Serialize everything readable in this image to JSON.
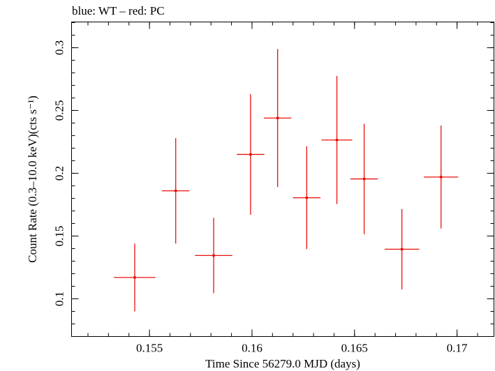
{
  "chart_data": {
    "type": "scatter",
    "title": "blue: WT – red: PC",
    "xlabel": "Time Since 56279.0 MJD (days)",
    "ylabel": "Count Rate (0.3–10.0 keV)(cts s⁻¹)",
    "xlim": [
      0.1512,
      0.1718
    ],
    "ylim": [
      0.07,
      0.3205
    ],
    "x_major_ticks": [
      0.155,
      0.16,
      0.165,
      0.17
    ],
    "x_tick_labels": [
      "0.155",
      "0.16",
      "0.165",
      "0.17"
    ],
    "x_minor_step": 0.001,
    "y_major_ticks": [
      0.1,
      0.15,
      0.2,
      0.25,
      0.3
    ],
    "y_tick_labels": [
      "0.1",
      "0.15",
      "0.2",
      "0.25",
      "0.3"
    ],
    "y_minor_step": 0.01,
    "grid": false,
    "series": [
      {
        "color": "#e8120c",
        "points": [
          {
            "x": 0.15428,
            "y": 0.117,
            "xerr_lo": 0.00101,
            "xerr_hi": 0.00101,
            "yerr_lo": 0.027,
            "yerr_hi": 0.027
          },
          {
            "x": 0.15628,
            "y": 0.186,
            "xerr_lo": 0.00067,
            "xerr_hi": 0.00067,
            "yerr_lo": 0.042,
            "yerr_hi": 0.042
          },
          {
            "x": 0.15813,
            "y": 0.1345,
            "xerr_lo": 0.00091,
            "xerr_hi": 0.00091,
            "yerr_lo": 0.03,
            "yerr_hi": 0.03
          },
          {
            "x": 0.15993,
            "y": 0.215,
            "xerr_lo": 0.00067,
            "xerr_hi": 0.00067,
            "yerr_lo": 0.048,
            "yerr_hi": 0.048
          },
          {
            "x": 0.16125,
            "y": 0.244,
            "xerr_lo": 0.00067,
            "xerr_hi": 0.00067,
            "yerr_lo": 0.055,
            "yerr_hi": 0.055
          },
          {
            "x": 0.16267,
            "y": 0.1805,
            "xerr_lo": 0.00067,
            "xerr_hi": 0.00067,
            "yerr_lo": 0.041,
            "yerr_hi": 0.041
          },
          {
            "x": 0.16414,
            "y": 0.2265,
            "xerr_lo": 0.00075,
            "xerr_hi": 0.00075,
            "yerr_lo": 0.051,
            "yerr_hi": 0.051
          },
          {
            "x": 0.16547,
            "y": 0.1955,
            "xerr_lo": 0.00067,
            "xerr_hi": 0.00067,
            "yerr_lo": 0.044,
            "yerr_hi": 0.044
          },
          {
            "x": 0.16731,
            "y": 0.1395,
            "xerr_lo": 0.00084,
            "xerr_hi": 0.00084,
            "yerr_lo": 0.032,
            "yerr_hi": 0.032
          },
          {
            "x": 0.16922,
            "y": 0.197,
            "xerr_lo": 0.00084,
            "xerr_hi": 0.00084,
            "yerr_lo": 0.041,
            "yerr_hi": 0.041
          }
        ]
      }
    ]
  }
}
